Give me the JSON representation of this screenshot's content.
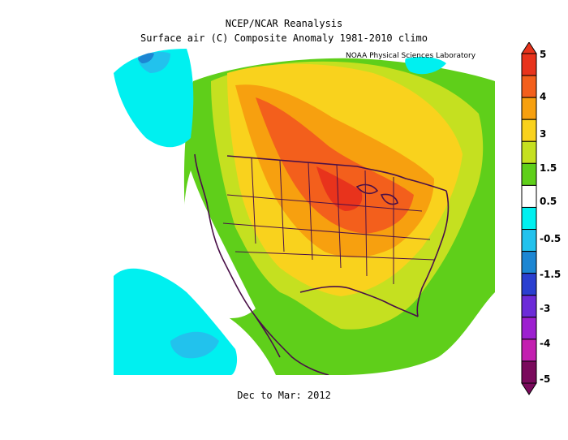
{
  "title_line1": "NCEP/NCAR Reanalysis",
  "title_line2": "Surface air (C) Composite Anomaly 1981-2010 climo",
  "credit": "NOAA Physical Sciences Laboratory",
  "period": "Dec to Mar: 2012",
  "colorbar": {
    "labels": [
      "5",
      "4",
      "3",
      "1.5",
      "0.5",
      "-0.5",
      "-1.5",
      "-3",
      "-4",
      "-5"
    ],
    "colors": [
      "#e8331c",
      "#f35f1c",
      "#f7a00f",
      "#f9d21d",
      "#c5e020",
      "#5fcf1a",
      "#ffffff",
      "#00f0f0",
      "#22c2ed",
      "#1c86d3",
      "#2a3fd0",
      "#6c2bd8",
      "#9d1fd0",
      "#c31fb0",
      "#7a0a5c"
    ]
  }
}
